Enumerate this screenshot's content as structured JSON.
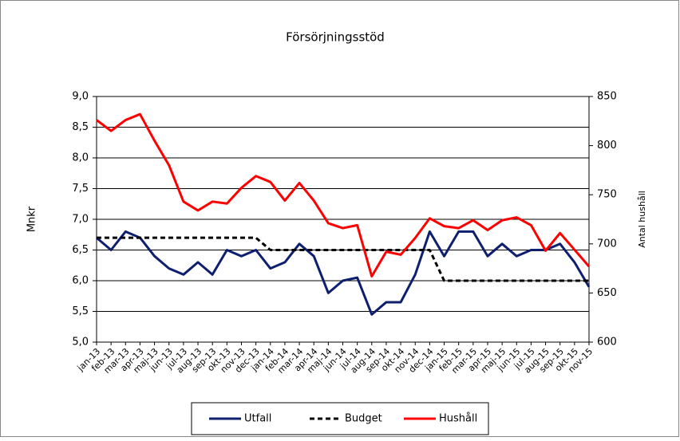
{
  "chart_data": {
    "type": "line",
    "title": "Försörjningsstöd",
    "ylabel": "Mnkr",
    "y2label": "Antal hushåll",
    "categories": [
      "jan-13",
      "feb-13",
      "mar-13",
      "apr-13",
      "maj-13",
      "jun-13",
      "jul-13",
      "aug-13",
      "sep-13",
      "okt-13",
      "nov-13",
      "dec-13",
      "jan-14",
      "feb-14",
      "mar-14",
      "apr-14",
      "maj-14",
      "jun-14",
      "jul-14",
      "aug-14",
      "sep-14",
      "okt-14",
      "nov-14",
      "dec-14",
      "jan-15",
      "feb-15",
      "mar-15",
      "apr-15",
      "maj-15",
      "jun-15",
      "jul-15",
      "aug-15",
      "sep-15",
      "okt-15",
      "nov-15"
    ],
    "series": [
      {
        "name": "Utfall",
        "color": "#0d1f6e",
        "style": "solid",
        "values": [
          6.7,
          6.5,
          6.8,
          6.7,
          6.4,
          6.2,
          6.1,
          6.3,
          6.1,
          6.5,
          6.4,
          6.5,
          6.2,
          6.3,
          6.6,
          6.4,
          5.8,
          6.0,
          6.05,
          5.45,
          5.65,
          5.65,
          6.1,
          6.8,
          6.4,
          6.8,
          6.8,
          6.4,
          6.6,
          6.4,
          6.5,
          6.5,
          6.6,
          6.3,
          5.9
        ]
      },
      {
        "name": "Budget",
        "color": "#000000",
        "style": "dashed",
        "values": [
          6.7,
          6.7,
          6.7,
          6.7,
          6.7,
          6.7,
          6.7,
          6.7,
          6.7,
          6.7,
          6.7,
          6.7,
          6.5,
          6.5,
          6.5,
          6.5,
          6.5,
          6.5,
          6.5,
          6.5,
          6.5,
          6.5,
          6.5,
          6.5,
          6.0,
          6.0,
          6.0,
          6.0,
          6.0,
          6.0,
          6.0,
          6.0,
          6.0,
          6.0,
          6.0
        ]
      },
      {
        "name": "Hushåll",
        "color": "#ff0000",
        "style": "solid",
        "axis": "y2",
        "values": [
          826,
          815,
          826,
          832,
          805,
          780,
          743,
          734,
          743,
          741,
          757,
          769,
          763,
          744,
          762,
          744,
          721,
          716,
          719,
          667,
          692,
          689,
          706,
          726,
          718,
          716,
          724,
          714,
          724,
          727,
          719,
          693,
          711,
          694,
          677
        ]
      }
    ],
    "ylim": [
      5,
      9
    ],
    "yticks": [
      {
        "value": 5,
        "label": "5,0"
      },
      {
        "value": 5.5,
        "label": "5,5"
      },
      {
        "value": 6,
        "label": "6,0"
      },
      {
        "value": 6.5,
        "label": "6,5"
      },
      {
        "value": 7,
        "label": "7,0"
      },
      {
        "value": 7.5,
        "label": "7,5"
      },
      {
        "value": 8,
        "label": "8,0"
      },
      {
        "value": 8.5,
        "label": "8,5"
      },
      {
        "value": 9,
        "label": "9,0"
      }
    ],
    "y2lim": [
      600,
      850
    ],
    "y2ticks": [
      600,
      650,
      700,
      750,
      800,
      850
    ],
    "grid": true,
    "legend": "bottom"
  }
}
